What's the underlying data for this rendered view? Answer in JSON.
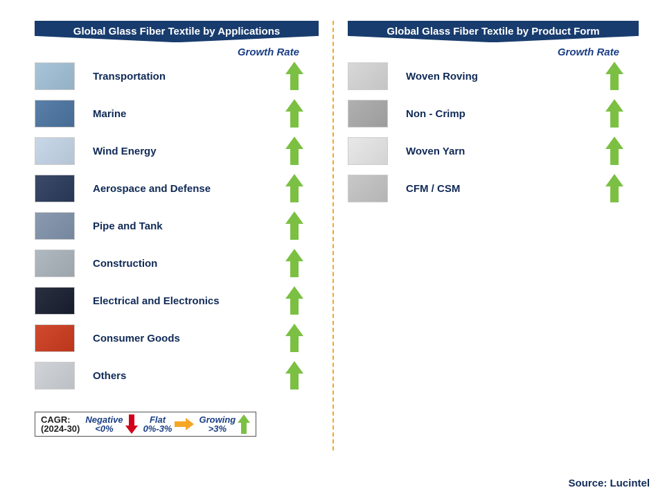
{
  "styling": {
    "banner_bg": "#183c6e",
    "banner_text": "#ffffff",
    "label_color": "#102a56",
    "growth_label_color": "#1a3e85",
    "grow_arrow_color": "#7bc043",
    "flat_arrow_color": "#f5a623",
    "neg_arrow_color": "#d0021b",
    "divider_color": "#f5a623",
    "thumb_placeholder_colors": [
      "#a8c4d8",
      "#5a7fa8",
      "#c8d8e8",
      "#3a4a68",
      "#8a9ab0",
      "#b0b8c0",
      "#2a3040",
      "#d04a30",
      "#d0d4d8"
    ],
    "right_thumb_colors": [
      "#d8d8d8",
      "#b0b0b0",
      "#e8e8e8",
      "#c8c8c8"
    ]
  },
  "left": {
    "title": "Global Glass Fiber Textile by Applications",
    "growth_header": "Growth Rate",
    "items": [
      {
        "label": "Transportation",
        "growth": "growing"
      },
      {
        "label": "Marine",
        "growth": "growing"
      },
      {
        "label": "Wind Energy",
        "growth": "growing"
      },
      {
        "label": "Aerospace and Defense",
        "growth": "growing"
      },
      {
        "label": "Pipe and Tank",
        "growth": "growing"
      },
      {
        "label": "Construction",
        "growth": "growing"
      },
      {
        "label": "Electrical and Electronics",
        "growth": "growing"
      },
      {
        "label": "Consumer Goods",
        "growth": "growing"
      },
      {
        "label": "Others",
        "growth": "growing"
      }
    ]
  },
  "right": {
    "title": "Global Glass Fiber Textile by Product Form",
    "growth_header": "Growth Rate",
    "items": [
      {
        "label": "Woven Roving",
        "growth": "growing"
      },
      {
        "label": "Non - Crimp",
        "growth": "growing"
      },
      {
        "label": "Woven Yarn",
        "growth": "growing"
      },
      {
        "label": "CFM / CSM",
        "growth": "growing"
      }
    ]
  },
  "legend": {
    "title_l1": "CAGR:",
    "title_l2": "(2024-30)",
    "negative_label": "Negative",
    "negative_range": "<0%",
    "flat_label": "Flat",
    "flat_range": "0%-3%",
    "growing_label": "Growing",
    "growing_range": ">3%"
  },
  "source": "Source: Lucintel"
}
